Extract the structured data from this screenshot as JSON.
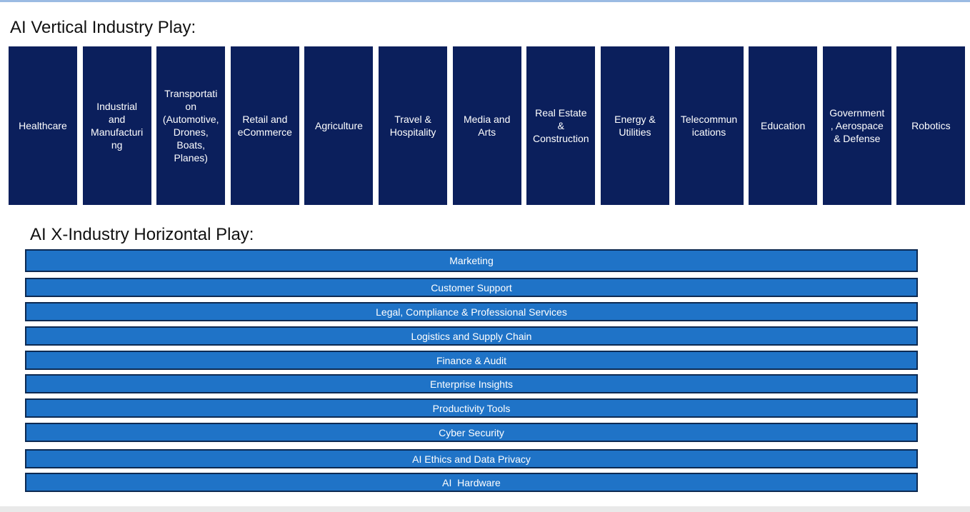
{
  "header": {
    "vertical_title": "AI Vertical Industry Play:",
    "horizontal_title": "AI X-Industry Horizontal Play:"
  },
  "verticals": [
    "Healthcare",
    "Industrial and Manufacturing",
    "Transportation (Automotive, Drones, Boats, Planes)",
    "Retail and eCommerce",
    "Agriculture",
    "Travel & Hospitality",
    "Media and Arts",
    "Real Estate & Construction",
    "Energy & Utilities",
    "Telecommunications",
    "Education",
    "Government, Aerospace & Defense",
    "Robotics"
  ],
  "horizontals": [
    "Marketing",
    "Customer Support",
    "Legal, Compliance & Professional Services",
    "Logistics and Supply Chain",
    "Finance & Audit",
    "Enterprise Insights",
    "Productivity Tools",
    "Cyber Security",
    "AI Ethics and Data Privacy",
    "AI  Hardware"
  ]
}
